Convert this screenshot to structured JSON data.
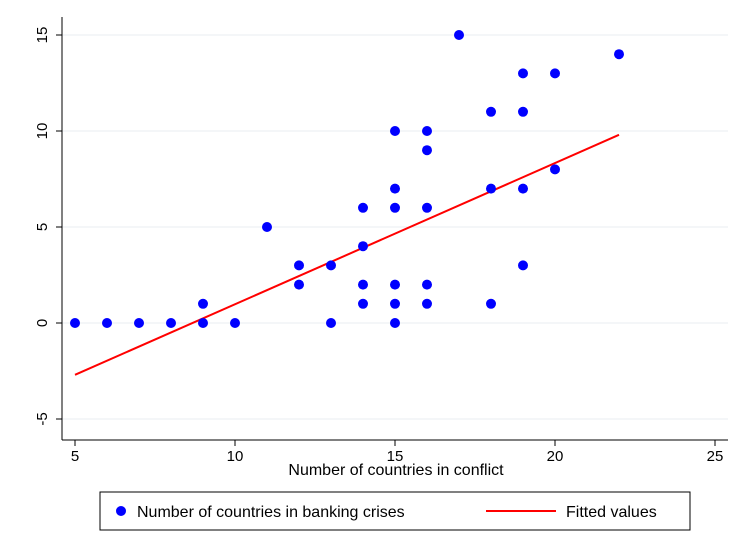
{
  "chart_data": {
    "type": "scatter",
    "xlabel": "Number of countries in conflict",
    "ylabel": "",
    "xlim": [
      5,
      25
    ],
    "ylim": [
      -5,
      15
    ],
    "x_ticks": [
      5,
      10,
      15,
      20,
      25
    ],
    "y_ticks": [
      -5,
      0,
      5,
      10,
      15
    ],
    "grid": "horizontal",
    "legend_position": "bottom",
    "series": [
      {
        "name": "Number of countries in banking crises",
        "kind": "scatter",
        "color": "#0000ff",
        "points": [
          [
            5,
            0
          ],
          [
            6,
            0
          ],
          [
            7,
            0
          ],
          [
            8,
            0
          ],
          [
            9,
            0
          ],
          [
            9,
            1
          ],
          [
            10,
            0
          ],
          [
            11,
            5
          ],
          [
            12,
            3
          ],
          [
            12,
            2
          ],
          [
            13,
            3
          ],
          [
            13,
            0
          ],
          [
            14,
            6
          ],
          [
            14,
            4
          ],
          [
            14,
            2
          ],
          [
            14,
            1
          ],
          [
            15,
            10
          ],
          [
            15,
            7
          ],
          [
            15,
            6
          ],
          [
            15,
            2
          ],
          [
            15,
            1
          ],
          [
            15,
            0
          ],
          [
            16,
            10
          ],
          [
            16,
            9
          ],
          [
            16,
            6
          ],
          [
            16,
            2
          ],
          [
            16,
            1
          ],
          [
            17,
            15
          ],
          [
            18,
            11
          ],
          [
            18,
            7
          ],
          [
            18,
            1
          ],
          [
            19,
            13
          ],
          [
            19,
            11
          ],
          [
            19,
            7
          ],
          [
            19,
            3
          ],
          [
            20,
            13
          ],
          [
            20,
            8
          ],
          [
            22,
            14
          ]
        ]
      },
      {
        "name": "Fitted values",
        "kind": "line",
        "color": "#ff0000",
        "points": [
          [
            5,
            -2.7
          ],
          [
            22,
            9.8
          ]
        ]
      }
    ]
  }
}
